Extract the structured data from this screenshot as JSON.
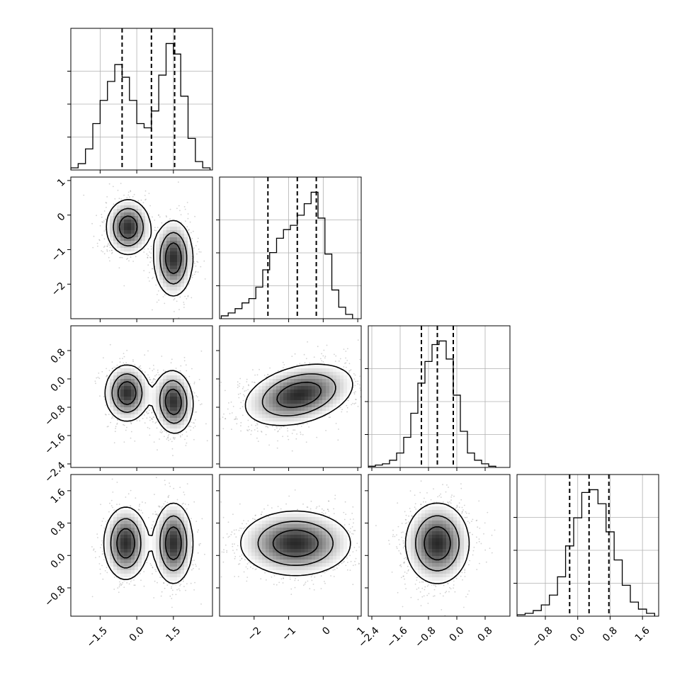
{
  "chart_data": {
    "type": "corner",
    "dimensions": 4,
    "quantile_lines": [
      0.16,
      0.5,
      0.84
    ],
    "colors": {
      "hist": "#000000",
      "quantile": "#000000",
      "contour": "#000000",
      "points": "#7f7f7f",
      "grid": "#b0b0b0"
    },
    "axes": [
      {
        "range": [
          -2.7,
          3.1
        ],
        "ticks": [
          -1.5,
          0.0,
          1.5
        ],
        "tick_labels": [
          "−1.5",
          "0.0",
          "1.5"
        ]
      },
      {
        "range": [
          -3.0,
          1.1
        ],
        "ticks": [
          -2,
          -1,
          0,
          1
        ],
        "tick_labels": [
          "−2",
          "−1",
          "0",
          "1"
        ]
      },
      {
        "range": [
          -2.5,
          1.5
        ],
        "ticks": [
          -2.4,
          -1.6,
          -0.8,
          0.0,
          0.8
        ],
        "tick_labels": [
          "−2.4",
          "−1.6",
          "−0.8",
          "0.0",
          "0.8"
        ]
      },
      {
        "range": [
          -1.5,
          2.0
        ],
        "ticks": [
          -0.8,
          0.0,
          0.8,
          1.6
        ],
        "tick_labels": [
          "−0.8",
          "0.0",
          "0.8",
          "1.6"
        ]
      }
    ],
    "diagonal_histograms": [
      {
        "param": 0,
        "quantiles": [
          -0.6,
          0.6,
          1.55
        ],
        "bin_edges": [
          -2.7,
          -2.4,
          -2.1,
          -1.8,
          -1.5,
          -1.2,
          -0.9,
          -0.6,
          -0.3,
          0.0,
          0.3,
          0.6,
          0.9,
          1.2,
          1.5,
          1.8,
          2.1,
          2.4,
          2.7,
          3.0
        ],
        "counts": [
          1,
          3,
          10,
          22,
          33,
          42,
          50,
          44,
          33,
          22,
          20,
          28,
          45,
          60,
          55,
          35,
          15,
          4,
          1
        ]
      },
      {
        "param": 1,
        "quantiles": [
          -1.6,
          -0.75,
          -0.2
        ],
        "bin_edges": [
          -2.95,
          -2.75,
          -2.55,
          -2.35,
          -2.15,
          -1.95,
          -1.75,
          -1.55,
          -1.35,
          -1.15,
          -0.95,
          -0.75,
          -0.55,
          -0.35,
          -0.15,
          0.05,
          0.25,
          0.45,
          0.65,
          0.85
        ],
        "counts": [
          2,
          4,
          7,
          11,
          14,
          22,
          34,
          46,
          56,
          62,
          65,
          72,
          80,
          88,
          70,
          45,
          20,
          8,
          3
        ]
      },
      {
        "param": 2,
        "quantiles": [
          -1.0,
          -0.55,
          -0.1
        ],
        "bin_edges": [
          -2.5,
          -2.3,
          -2.1,
          -1.9,
          -1.7,
          -1.5,
          -1.3,
          -1.1,
          -0.9,
          -0.7,
          -0.5,
          -0.3,
          -0.1,
          0.1,
          0.3,
          0.5,
          0.7,
          0.9,
          1.1
        ],
        "counts": [
          1,
          2,
          3,
          6,
          12,
          25,
          45,
          70,
          88,
          102,
          105,
          90,
          60,
          30,
          12,
          6,
          3,
          1
        ]
      },
      {
        "param": 3,
        "quantiles": [
          -0.2,
          0.28,
          0.77
        ],
        "bin_edges": [
          -1.5,
          -1.3,
          -1.1,
          -0.9,
          -0.7,
          -0.5,
          -0.3,
          -0.1,
          0.1,
          0.3,
          0.5,
          0.7,
          0.9,
          1.1,
          1.3,
          1.5,
          1.7,
          1.9
        ],
        "counts": [
          1,
          2,
          4,
          8,
          15,
          28,
          50,
          70,
          88,
          90,
          80,
          60,
          40,
          22,
          10,
          5,
          2
        ]
      }
    ],
    "pair_modes": [
      {
        "x": 1,
        "y": 0,
        "modes": [
          {
            "cx": -0.35,
            "cy": -0.35,
            "sx": 0.45,
            "sy": 0.4,
            "rot": 0.0
          },
          {
            "cx": 1.5,
            "cy": -1.25,
            "sx": 0.4,
            "sy": 0.55,
            "rot": 0.0
          }
        ]
      },
      {
        "x": 2,
        "y": 0,
        "modes": [
          {
            "cx": -0.4,
            "cy": -0.4,
            "sx": 0.45,
            "sy": 0.4,
            "rot": 0.0
          },
          {
            "cx": 1.5,
            "cy": -0.65,
            "sx": 0.4,
            "sy": 0.45,
            "rot": 0.3
          }
        ]
      },
      {
        "x": 2,
        "y": 1,
        "modes": [
          {
            "cx": -0.7,
            "cy": -0.45,
            "sx": 0.8,
            "sy": 0.4,
            "rot": 0.25
          }
        ]
      },
      {
        "x": 3,
        "y": 0,
        "modes": [
          {
            "cx": -0.45,
            "cy": 0.3,
            "sx": 0.45,
            "sy": 0.45,
            "rot": 0.0
          },
          {
            "cx": 1.5,
            "cy": 0.3,
            "sx": 0.4,
            "sy": 0.5,
            "rot": 0.0
          }
        ]
      },
      {
        "x": 3,
        "y": 1,
        "modes": [
          {
            "cx": -0.8,
            "cy": 0.3,
            "sx": 0.8,
            "sy": 0.4,
            "rot": 0.0
          }
        ]
      },
      {
        "x": 3,
        "y": 2,
        "modes": [
          {
            "cx": -0.55,
            "cy": 0.3,
            "sx": 0.45,
            "sy": 0.5,
            "rot": 0.0
          }
        ]
      }
    ]
  }
}
